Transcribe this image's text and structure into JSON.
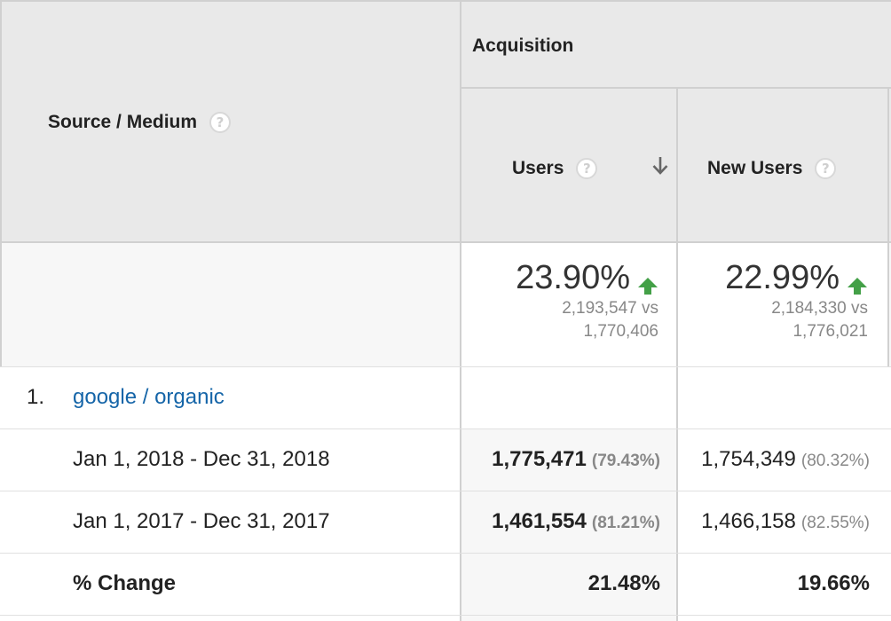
{
  "table": {
    "dimension_header": "Source / Medium",
    "group_header": "Acquisition",
    "columns": [
      {
        "label": "Users",
        "sorted": "descending"
      },
      {
        "label": "New Users"
      }
    ],
    "summary": [
      {
        "pct": "23.90%",
        "current": "2,193,547 vs",
        "previous": "1,770,406",
        "trend": "up"
      },
      {
        "pct": "22.99%",
        "current": "2,184,330 vs",
        "previous": "1,776,021",
        "trend": "up"
      }
    ],
    "rows": [
      {
        "index": "1.",
        "name": "google / organic",
        "periods": [
          {
            "label": "Jan 1, 2018 - Dec 31, 2018",
            "users": "1,775,471",
            "users_share": "(79.43%)",
            "new_users": "1,754,349",
            "new_users_share": "(80.32%)"
          },
          {
            "label": "Jan 1, 2017 - Dec 31, 2017",
            "users": "1,461,554",
            "users_share": "(81.21%)",
            "new_users": "1,466,158",
            "new_users_share": "(82.55%)"
          }
        ],
        "change": {
          "label": "% Change",
          "users": "21.48%",
          "new_users": "19.66%"
        }
      }
    ]
  },
  "colors": {
    "trend_up": "#43a047",
    "link": "#1565a8",
    "header_bg": "#e9e9e9"
  }
}
